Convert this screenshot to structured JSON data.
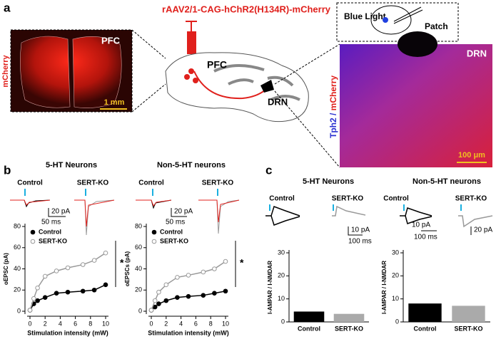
{
  "panel_a": {
    "label": "a",
    "vector": "rAAV2/1-CAG-hChR2(H134R)-mCherry",
    "pfc_image": {
      "label": "PFC",
      "stain": "mCherry",
      "scale": "1 mm"
    },
    "schematic": {
      "pfc": "PFC",
      "drn": "DRN"
    },
    "inset": {
      "light": "Blue Light",
      "patch": "Patch"
    },
    "drn_image": {
      "label": "DRN",
      "stain_a": "Tph2",
      "separator": " / ",
      "stain_b": "mCherry",
      "scale": "100 μm"
    }
  },
  "panel_b": {
    "label": "b",
    "traces": [
      {
        "control": "Control",
        "ko": "SERT-KO",
        "amp": "20 pA",
        "time": "50 ms"
      },
      {
        "control": "Control",
        "ko": "SERT-KO",
        "amp": "20 pA",
        "time": "50 ms"
      }
    ]
  },
  "panel_c": {
    "label": "c",
    "traces": [
      {
        "control": "Control",
        "ko": "SERT-KO",
        "amp": "10 pA",
        "time": "100 ms"
      },
      {
        "control": "Control",
        "ko": "SERT-KO",
        "amp_control": "10 pA",
        "time": "100 ms",
        "amp_ko": "20 pA"
      }
    ]
  },
  "chart_data": [
    {
      "type": "line",
      "title": "5-HT Neurons",
      "x_label": "Stimulation intensity (mW)",
      "y_label": "oEPSC (pA)",
      "x": [
        0,
        0.5,
        1,
        2,
        3.5,
        5,
        7,
        8.5,
        10
      ],
      "series": [
        {
          "name": "Control",
          "color": "#000000",
          "marker_fill": "#000000",
          "values": [
            1,
            7,
            10,
            13,
            17,
            18,
            19,
            20,
            25
          ]
        },
        {
          "name": "SERT-KO",
          "color": "#999999",
          "marker_fill": "#ffffff",
          "values": [
            1,
            12,
            22,
            33,
            38,
            41,
            44,
            48,
            55
          ]
        }
      ],
      "xlim": [
        0,
        10
      ],
      "xticks": [
        0,
        2,
        4,
        6,
        8,
        10
      ],
      "ylim": [
        0,
        80
      ],
      "yticks": [
        0,
        20,
        40,
        60,
        80
      ],
      "annotation": "*"
    },
    {
      "type": "line",
      "title": "Non-5-HT neurons",
      "x_label": "Stimulation intensity (mW)",
      "y_label": "oEPSCs (pA)",
      "x": [
        0,
        0.5,
        1,
        2,
        3.5,
        5,
        7,
        8.5,
        10
      ],
      "series": [
        {
          "name": "Control",
          "color": "#000000",
          "marker_fill": "#000000",
          "values": [
            1,
            4,
            7,
            10,
            13,
            14,
            15,
            17,
            19
          ]
        },
        {
          "name": "SERT-KO",
          "color": "#999999",
          "marker_fill": "#ffffff",
          "values": [
            1,
            10,
            18,
            25,
            32,
            34,
            37,
            40,
            47
          ]
        }
      ],
      "xlim": [
        0,
        10
      ],
      "xticks": [
        0,
        2,
        4,
        6,
        8,
        10
      ],
      "ylim": [
        0,
        80
      ],
      "yticks": [
        0,
        20,
        40,
        60,
        80
      ],
      "annotation": "*"
    },
    {
      "type": "bar",
      "title": "5-HT Neurons",
      "y_label": "I-AMPAR / I-NMDAR",
      "categories": [
        "Control",
        "SERT-KO"
      ],
      "values": [
        4.5,
        3.5
      ],
      "colors": [
        "#000000",
        "#aaaaaa"
      ],
      "ylim": [
        0,
        30
      ],
      "yticks": [
        0,
        10,
        20,
        30
      ]
    },
    {
      "type": "bar",
      "title": "Non-5-HT neurons",
      "y_label": "I-AMPAR / I-NMDAR",
      "categories": [
        "Control",
        "SERT-KO"
      ],
      "values": [
        8,
        7
      ],
      "colors": [
        "#000000",
        "#aaaaaa"
      ],
      "ylim": [
        0,
        30
      ],
      "yticks": [
        0,
        10,
        20,
        30
      ]
    }
  ]
}
